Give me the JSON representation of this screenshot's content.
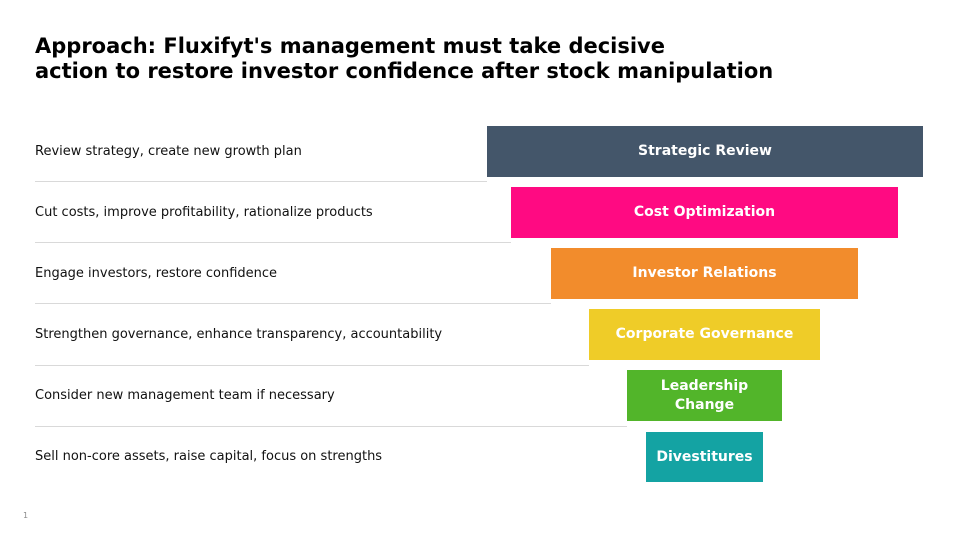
{
  "slide": {
    "title_line1": "Approach: Fluxifyt's management must take decisive",
    "title_line2": "action to restore investor confidence after stock manipulation",
    "page_number": "1"
  },
  "funnel": {
    "steps": [
      {
        "description": "Review strategy, create new growth plan",
        "label_line1": "Strategic Review",
        "label_line2": "",
        "color": "#44566a"
      },
      {
        "description": "Cut costs, improve profitability, rationalize products",
        "label_line1": "Cost Optimization",
        "label_line2": "",
        "color": "#ff0a82"
      },
      {
        "description": "Engage investors, restore confidence",
        "label_line1": "Investor Relations",
        "label_line2": "",
        "color": "#f28c2c"
      },
      {
        "description": "Strengthen governance, enhance transparency, accountability",
        "label_line1": "Corporate Governance",
        "label_line2": "",
        "color": "#efcc28"
      },
      {
        "description": "Consider new management team if necessary",
        "label_line1": "Leadership",
        "label_line2": "Change",
        "color": "#52b52a"
      },
      {
        "description": "Sell non-core assets, raise capital, focus on strengths",
        "label_line1": "Divestitures",
        "label_line2": "",
        "color": "#14a3a3"
      }
    ]
  }
}
